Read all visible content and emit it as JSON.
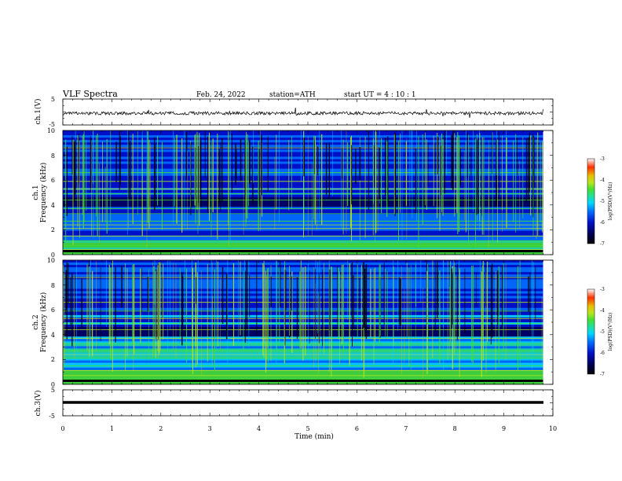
{
  "header": {
    "title": "VLF  Spectra",
    "date": "Feb. 24, 2022",
    "station": "station=ATH",
    "start": "start  UT  =   4  : 10 : 1"
  },
  "colors": {
    "spectrogram_scale": [
      "#000000",
      "#00005a",
      "#0010c8",
      "#0070ff",
      "#00d8ff",
      "#22e09a",
      "#44e030",
      "#b8e61e",
      "#e8c000",
      "#ff3000",
      "#ffffff"
    ],
    "trace": "#000000"
  },
  "chart_data": [
    {
      "type": "line",
      "id": "ch1-waveform",
      "ylabel": "ch.1(V)",
      "ylim": [
        -5,
        5
      ],
      "yticks": [
        "5",
        "-5"
      ],
      "xlim": [
        0,
        10
      ],
      "baseline": -0.5,
      "amplitude": 0.8
    },
    {
      "type": "heatmap",
      "id": "ch1-spectrogram",
      "ylabel": "ch.1\nFrequency  (kHz)",
      "ylabel_lines": [
        "ch.1",
        "Frequency  (kHz)"
      ],
      "ylim": [
        0,
        10
      ],
      "yticks": [
        "0",
        "2",
        "4",
        "6",
        "8",
        "10"
      ],
      "xlim": [
        0,
        9.8
      ],
      "colorbar": {
        "range": [
          -7,
          -3
        ],
        "ticks": [
          "-3",
          "-4",
          "-5",
          "-6",
          "-7"
        ],
        "label": "log(PSD)(V²/Hz)"
      }
    },
    {
      "type": "heatmap",
      "id": "ch2-spectrogram",
      "ylabel": "ch.2\nFrequency  (kHz)",
      "ylabel_lines": [
        "ch.2",
        "Frequency  (kHz)"
      ],
      "ylim": [
        0,
        10
      ],
      "yticks": [
        "0",
        "2",
        "4",
        "6",
        "8",
        "10"
      ],
      "xlim": [
        0,
        9.8
      ],
      "colorbar": {
        "range": [
          -7,
          -3
        ],
        "ticks": [
          "-3",
          "-4",
          "-5",
          "-6",
          "-7"
        ],
        "label": "log(PSD)(V²/Hz)"
      }
    },
    {
      "type": "line",
      "id": "ch3-waveform",
      "ylabel": "ch.3(V)",
      "ylim": [
        -5,
        5
      ],
      "yticks": [
        "5",
        "-5"
      ],
      "xlim": [
        0,
        10
      ],
      "baseline": -1.5,
      "amplitude": 0.0
    }
  ],
  "x_axis": {
    "label": "Time  (min)",
    "range": [
      0,
      10
    ],
    "ticks": [
      "0",
      "1",
      "2",
      "3",
      "4",
      "5",
      "6",
      "7",
      "8",
      "9",
      "10"
    ]
  }
}
